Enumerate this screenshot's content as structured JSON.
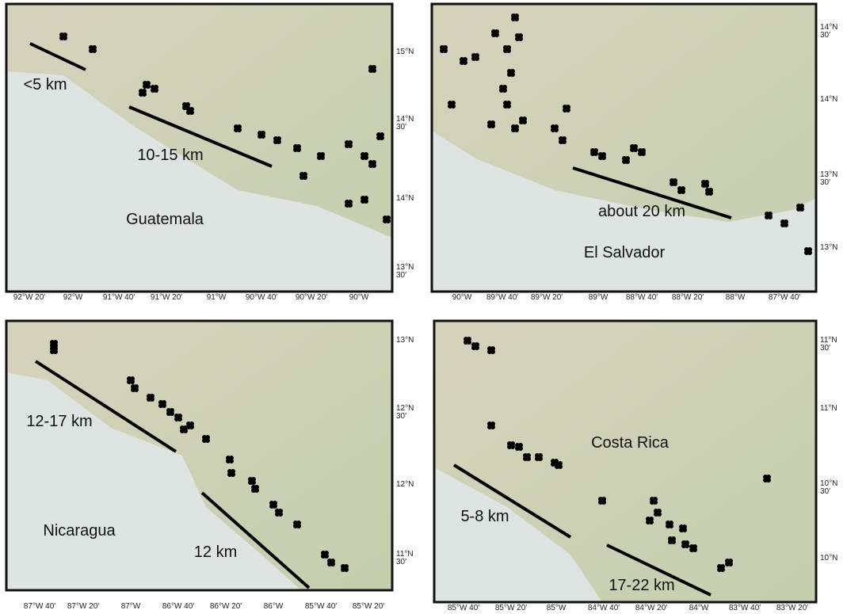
{
  "panels": [
    {
      "name": "Guatemala",
      "annotations": [
        "<5 km",
        "10-15 km",
        "Guatemala"
      ],
      "xticks": [
        "92°W 20′",
        "92°W",
        "91°W 40′",
        "91°W 20′",
        "91°W",
        "90°W 40′",
        "90°W 20′",
        "90°W"
      ],
      "yticks": [
        [
          "15°N"
        ],
        [
          "14°N",
          "30′"
        ],
        [
          "14°N"
        ],
        [
          "13°N",
          "30′"
        ]
      ]
    },
    {
      "name": "El Salvador",
      "annotations": [
        "about 20 km",
        "El Salvador"
      ],
      "xticks": [
        "90°W",
        "89°W 40′",
        "89°W 20′",
        "89°W",
        "88°W 40′",
        "88°W 20′",
        "88°W",
        "87°W 40′"
      ],
      "yticks": [
        [
          "14°N",
          "30′"
        ],
        [
          "14°N"
        ],
        [
          "13°N",
          "30′"
        ],
        [
          "13°N"
        ]
      ]
    },
    {
      "name": "Nicaragua",
      "annotations": [
        "12-17 km",
        "12 km",
        "Nicaragua"
      ],
      "xticks": [
        "87°W 40′",
        "87°W 20′",
        "87°W",
        "86°W 40′",
        "86°W 20′",
        "86°W",
        "85°W 40′",
        "85°W 20′"
      ],
      "yticks": [
        [
          "13°N"
        ],
        [
          "12°N",
          "30′"
        ],
        [
          "12°N"
        ],
        [
          "11°N",
          "30′"
        ]
      ]
    },
    {
      "name": "Costa Rica",
      "annotations": [
        "5-8 km",
        "17-22 km",
        "Costa Rica"
      ],
      "xticks": [
        "85°W 40′",
        "85°W 20′",
        "85°W",
        "84°W 40′",
        "84°W 20′",
        "84°W",
        "83°W 40′",
        "83°W 20′"
      ],
      "yticks": [
        [
          "11°N",
          "30′"
        ],
        [
          "11°N"
        ],
        [
          "10°N",
          "30′"
        ],
        [
          "10°N"
        ]
      ]
    }
  ]
}
